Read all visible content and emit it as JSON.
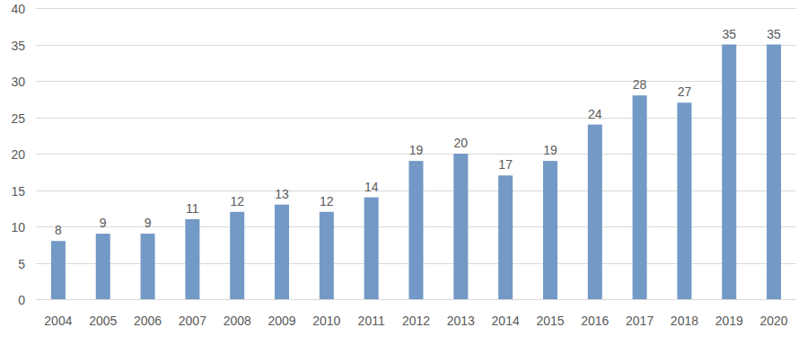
{
  "chart_data": {
    "type": "bar",
    "categories": [
      "2004",
      "2005",
      "2006",
      "2007",
      "2008",
      "2009",
      "2010",
      "2011",
      "2012",
      "2013",
      "2014",
      "2015",
      "2016",
      "2017",
      "2018",
      "2019",
      "2020"
    ],
    "values": [
      8,
      9,
      9,
      11,
      12,
      13,
      12,
      14,
      19,
      20,
      17,
      19,
      24,
      28,
      27,
      35,
      35
    ],
    "color": "#7399c6",
    "ylim": [
      0,
      40
    ],
    "yticks": [
      0,
      5,
      10,
      15,
      20,
      25,
      30,
      35,
      40
    ],
    "grid": true,
    "data_labels": true
  }
}
